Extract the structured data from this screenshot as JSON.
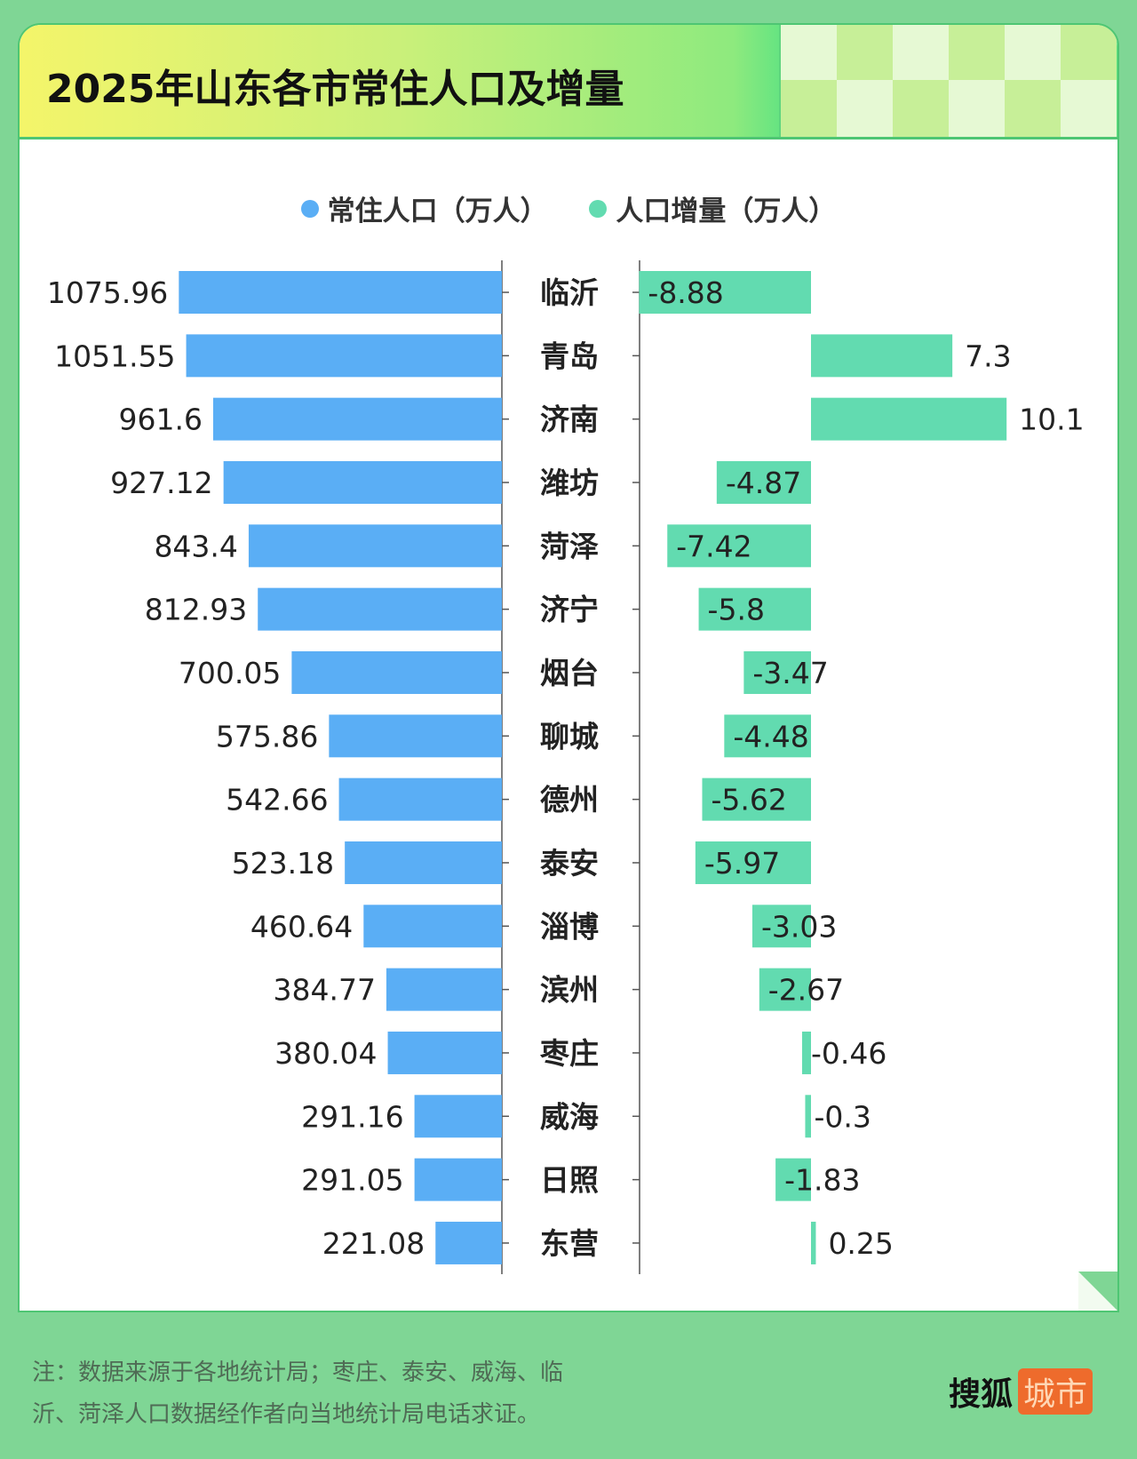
{
  "title": "2025年山东各市常住人口及增量",
  "legend": [
    {
      "label": "常住人口（万人）",
      "color": "#5aaef5"
    },
    {
      "label": "人口增量（万人）",
      "color": "#62dbb0"
    }
  ],
  "chart_data": {
    "type": "bar",
    "orientation": "horizontal",
    "title": "2025年山东各市常住人口及增量",
    "categories": [
      "临沂",
      "青岛",
      "济南",
      "潍坊",
      "菏泽",
      "济宁",
      "烟台",
      "聊城",
      "德州",
      "泰安",
      "淄博",
      "滨州",
      "枣庄",
      "威海",
      "日照",
      "东营"
    ],
    "series": [
      {
        "name": "常住人口（万人）",
        "color": "#5aaef5",
        "values": [
          1075.96,
          1051.55,
          961.6,
          927.12,
          843.4,
          812.93,
          700.05,
          575.86,
          542.66,
          523.18,
          460.64,
          384.77,
          380.04,
          291.16,
          291.05,
          221.08
        ],
        "labels": [
          "1075.96",
          "1051.55",
          "961.6",
          "927.12",
          "843.4",
          "812.93",
          "700.05",
          "575.86",
          "542.66",
          "523.18",
          "460.64",
          "384.77",
          "380.04",
          "291.16",
          "291.05",
          "221.08"
        ]
      },
      {
        "name": "人口增量（万人）",
        "color": "#62dbb0",
        "values": [
          -8.88,
          7.3,
          10.1,
          -4.87,
          -7.42,
          -5.8,
          -3.47,
          -4.48,
          -5.62,
          -5.97,
          -3.03,
          -2.67,
          -0.46,
          -0.3,
          -1.83,
          0.25
        ],
        "labels": [
          "-8.88",
          "7.3",
          "10.1",
          "-4.87",
          "-7.42",
          "-5.8",
          "-3.47",
          "-4.48",
          "-5.62",
          "-5.97",
          "-3.03",
          "-2.67",
          "-0.46",
          "-0.3",
          "-1.83",
          "0.25"
        ]
      }
    ],
    "legend_position": "top",
    "grid": false
  },
  "footer": {
    "note_line1": "注：数据来源于各地统计局；枣庄、泰安、威海、临",
    "note_line2": "沂、菏泽人口数据经作者向当地统计局电话求证。",
    "logo_text": "搜狐",
    "logo_badge": "城市"
  }
}
